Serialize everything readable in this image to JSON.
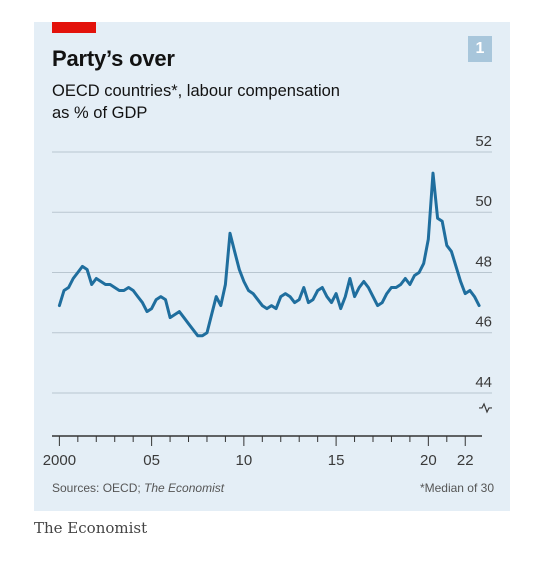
{
  "header": {
    "badge": "1"
  },
  "footer": {
    "source_prefix": "Sources: OECD; ",
    "source_italic": "The Economist",
    "note": "*Median of 30"
  },
  "brand": "The Economist",
  "colors": {
    "panel": "#e4eef6",
    "line": "#1f6e9e",
    "accent": "#e3120b",
    "badge": "#a8c6db"
  },
  "chart_data": {
    "type": "line",
    "title": "Party’s over",
    "subtitle": "OECD countries*, labour compensation as % of GDP",
    "ylim": [
      43.5,
      52
    ],
    "yticks": [
      44,
      46,
      48,
      50,
      52
    ],
    "ytick_labels": [
      "44",
      "46",
      "48",
      "50",
      "52"
    ],
    "xlim": [
      1999.6,
      2022.8
    ],
    "xtick_positions": [
      2000,
      2005,
      2010,
      2015,
      2020,
      2022
    ],
    "xtick_labels": [
      "2000",
      "05",
      "10",
      "15",
      "20",
      "22"
    ],
    "grid": true,
    "axis_break": true,
    "series": [
      {
        "values": [
          [
            2000.0,
            46.9
          ],
          [
            2000.25,
            47.4
          ],
          [
            2000.5,
            47.5
          ],
          [
            2000.75,
            47.8
          ],
          [
            2001.0,
            48.0
          ],
          [
            2001.25,
            48.2
          ],
          [
            2001.5,
            48.1
          ],
          [
            2001.75,
            47.6
          ],
          [
            2002.0,
            47.8
          ],
          [
            2002.25,
            47.7
          ],
          [
            2002.5,
            47.6
          ],
          [
            2002.75,
            47.6
          ],
          [
            2003.0,
            47.5
          ],
          [
            2003.25,
            47.4
          ],
          [
            2003.5,
            47.4
          ],
          [
            2003.75,
            47.5
          ],
          [
            2004.0,
            47.4
          ],
          [
            2004.25,
            47.2
          ],
          [
            2004.5,
            47.0
          ],
          [
            2004.75,
            46.7
          ],
          [
            2005.0,
            46.8
          ],
          [
            2005.25,
            47.1
          ],
          [
            2005.5,
            47.2
          ],
          [
            2005.75,
            47.1
          ],
          [
            2006.0,
            46.5
          ],
          [
            2006.25,
            46.6
          ],
          [
            2006.5,
            46.7
          ],
          [
            2006.75,
            46.5
          ],
          [
            2007.0,
            46.3
          ],
          [
            2007.25,
            46.1
          ],
          [
            2007.5,
            45.9
          ],
          [
            2007.75,
            45.9
          ],
          [
            2008.0,
            46.0
          ],
          [
            2008.25,
            46.6
          ],
          [
            2008.5,
            47.2
          ],
          [
            2008.75,
            46.9
          ],
          [
            2009.0,
            47.6
          ],
          [
            2009.25,
            49.3
          ],
          [
            2009.5,
            48.7
          ],
          [
            2009.75,
            48.1
          ],
          [
            2010.0,
            47.7
          ],
          [
            2010.25,
            47.4
          ],
          [
            2010.5,
            47.3
          ],
          [
            2010.75,
            47.1
          ],
          [
            2011.0,
            46.9
          ],
          [
            2011.25,
            46.8
          ],
          [
            2011.5,
            46.9
          ],
          [
            2011.75,
            46.8
          ],
          [
            2012.0,
            47.2
          ],
          [
            2012.25,
            47.3
          ],
          [
            2012.5,
            47.2
          ],
          [
            2012.75,
            47.0
          ],
          [
            2013.0,
            47.1
          ],
          [
            2013.25,
            47.5
          ],
          [
            2013.5,
            47.0
          ],
          [
            2013.75,
            47.1
          ],
          [
            2014.0,
            47.4
          ],
          [
            2014.25,
            47.5
          ],
          [
            2014.5,
            47.2
          ],
          [
            2014.75,
            47.0
          ],
          [
            2015.0,
            47.3
          ],
          [
            2015.25,
            46.8
          ],
          [
            2015.5,
            47.2
          ],
          [
            2015.75,
            47.8
          ],
          [
            2016.0,
            47.2
          ],
          [
            2016.25,
            47.5
          ],
          [
            2016.5,
            47.7
          ],
          [
            2016.75,
            47.5
          ],
          [
            2017.0,
            47.2
          ],
          [
            2017.25,
            46.9
          ],
          [
            2017.5,
            47.0
          ],
          [
            2017.75,
            47.3
          ],
          [
            2018.0,
            47.5
          ],
          [
            2018.25,
            47.5
          ],
          [
            2018.5,
            47.6
          ],
          [
            2018.75,
            47.8
          ],
          [
            2019.0,
            47.6
          ],
          [
            2019.25,
            47.9
          ],
          [
            2019.5,
            48.0
          ],
          [
            2019.75,
            48.3
          ],
          [
            2020.0,
            49.1
          ],
          [
            2020.25,
            51.3
          ],
          [
            2020.5,
            49.8
          ],
          [
            2020.75,
            49.7
          ],
          [
            2021.0,
            48.9
          ],
          [
            2021.25,
            48.7
          ],
          [
            2021.5,
            48.2
          ],
          [
            2021.75,
            47.7
          ],
          [
            2022.0,
            47.3
          ],
          [
            2022.25,
            47.4
          ],
          [
            2022.5,
            47.2
          ],
          [
            2022.75,
            46.9
          ]
        ]
      }
    ]
  }
}
